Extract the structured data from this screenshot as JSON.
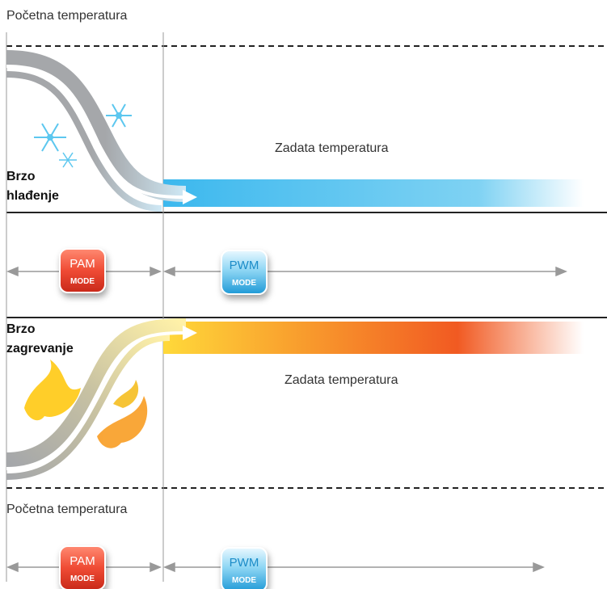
{
  "labels": {
    "initial_temp_top": "Početna temperatura",
    "set_temp_cooling": "Zadata temperatura",
    "fast_cooling_line1": "Brzo",
    "fast_cooling_line2": "hlađenje",
    "fast_heating_line1": "Brzo",
    "fast_heating_line2": "zagrevanje",
    "set_temp_heating": "Zadata temperatura",
    "initial_temp_bottom": "Početna temperatura"
  },
  "badges": {
    "pam": {
      "top": "PAM",
      "bottom": "MODE"
    },
    "pwm": {
      "top": "PWM",
      "bottom": "MODE"
    }
  },
  "colors": {
    "pam_red": "#e8402a",
    "pwm_blue": "#2aa8de",
    "cool_blue": "#4cc3ef",
    "heat_orange": "#f26522",
    "heat_yellow": "#ffd23a",
    "curve_gray": "#a5a7aa"
  }
}
